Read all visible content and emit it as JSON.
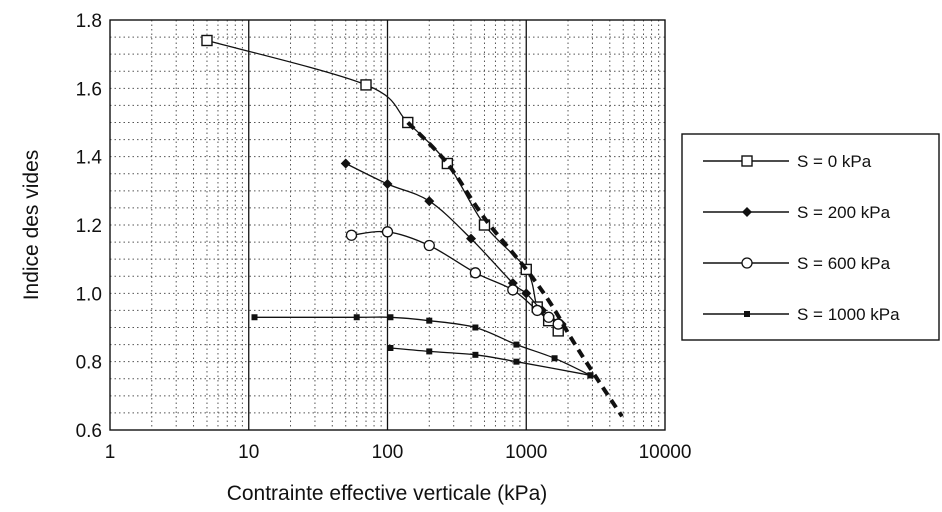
{
  "chart_data": {
    "type": "line",
    "xlabel": "Contrainte effective verticale (kPa)",
    "ylabel": "Indice des vides",
    "x_scale": "log",
    "xlim": [
      1,
      10000
    ],
    "ylim": [
      0.6,
      1.8
    ],
    "x_ticks": [
      "1",
      "10",
      "100",
      "1000",
      "10000"
    ],
    "x_tick_values": [
      1,
      10,
      100,
      1000,
      10000
    ],
    "y_ticks": [
      "0.6",
      "0.8",
      "1.0",
      "1.2",
      "1.4",
      "1.6",
      "1.8"
    ],
    "y_tick_values": [
      0.6,
      0.8,
      1.0,
      1.2,
      1.4,
      1.6,
      1.8
    ],
    "grid": true,
    "legend_position": "right",
    "series": [
      {
        "name": "S = 0 kPa",
        "marker": "open-square",
        "line_style": "solid",
        "x": [
          5,
          70,
          140,
          270,
          500,
          1000,
          1200,
          1450,
          1700
        ],
        "y": [
          1.74,
          1.61,
          1.5,
          1.38,
          1.2,
          1.07,
          0.96,
          0.92,
          0.89
        ]
      },
      {
        "name": "S = 200 kPa",
        "marker": "filled-diamond",
        "line_style": "solid",
        "x": [
          50,
          100,
          200,
          400,
          800,
          1000,
          1300,
          1800
        ],
        "y": [
          1.38,
          1.32,
          1.27,
          1.16,
          1.03,
          1.0,
          0.95,
          0.91
        ]
      },
      {
        "name": "S = 600 kPa",
        "marker": "open-circle",
        "line_style": "solid",
        "x": [
          55,
          100,
          200,
          430,
          800,
          1200,
          1450,
          1700
        ],
        "y": [
          1.17,
          1.18,
          1.14,
          1.06,
          1.01,
          0.95,
          0.93,
          0.91
        ]
      },
      {
        "name": "S = 1000 kPa",
        "marker": "filled-square",
        "line_style": "solid",
        "x": [
          11,
          60,
          105,
          200,
          430,
          850,
          1600,
          2900
        ],
        "y": [
          0.93,
          0.93,
          0.93,
          0.92,
          0.9,
          0.85,
          0.81,
          0.76
        ]
      },
      {
        "name": "",
        "marker": "filled-square",
        "line_style": "solid",
        "x": [
          105,
          200,
          430,
          850,
          2900
        ],
        "y": [
          0.84,
          0.83,
          0.82,
          0.8,
          0.76
        ]
      },
      {
        "name": "",
        "marker": "none",
        "line_style": "dashed",
        "x": [
          140,
          270,
          500,
          1000,
          1500,
          2100,
          2900,
          4900
        ],
        "y": [
          1.5,
          1.38,
          1.22,
          1.07,
          0.97,
          0.87,
          0.78,
          0.64
        ]
      }
    ]
  }
}
